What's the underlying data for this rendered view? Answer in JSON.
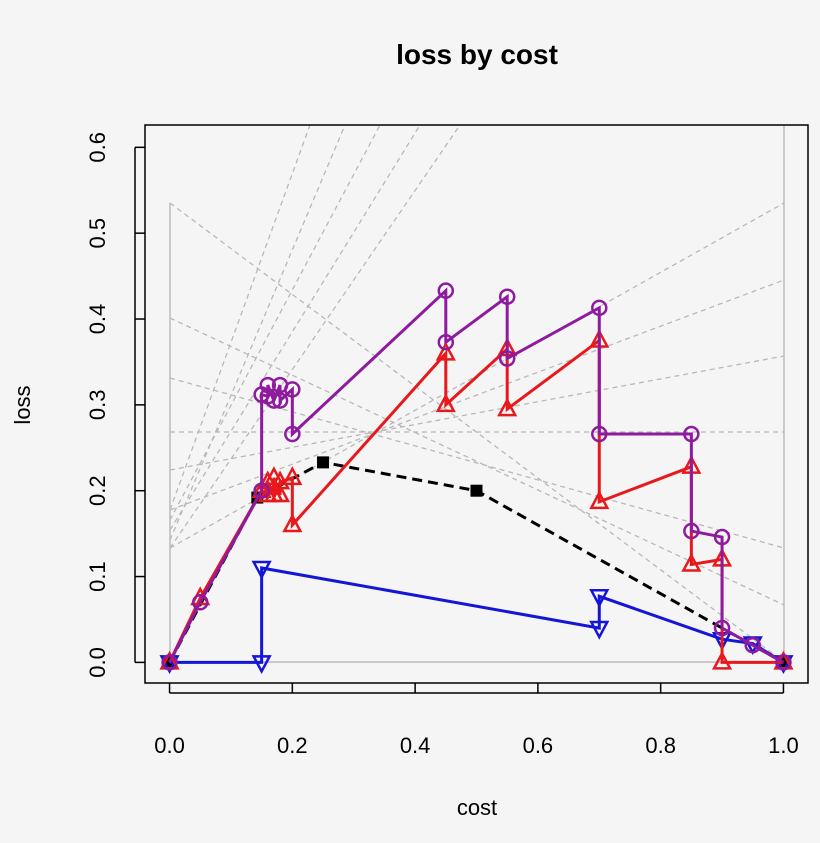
{
  "chart_data": {
    "type": "line",
    "title": "loss by cost",
    "x_label": "cost",
    "y_label": "loss",
    "xlim": [
      -0.04,
      1.04
    ],
    "ylim": [
      -0.024,
      0.626
    ],
    "xticks": [
      {
        "value": 0,
        "label": "0.0"
      },
      {
        "value": 0.2,
        "label": "0.2"
      },
      {
        "value": 0.4,
        "label": "0.4"
      },
      {
        "value": 0.6,
        "label": "0.6"
      },
      {
        "value": 0.8,
        "label": "0.8"
      },
      {
        "value": 1,
        "label": "1.0"
      }
    ],
    "yticks": [
      {
        "value": 0,
        "label": "0.0"
      },
      {
        "value": 0.1,
        "label": "0.1"
      },
      {
        "value": 0.2,
        "label": "0.2"
      },
      {
        "value": 0.3,
        "label": "0.3"
      },
      {
        "value": 0.4,
        "label": "0.4"
      },
      {
        "value": 0.5,
        "label": "0.5"
      },
      {
        "value": 0.6,
        "label": "0.6"
      }
    ],
    "series": [
      {
        "color": "#000000",
        "marker": "square",
        "dashed": true,
        "x": [
          0,
          0.143,
          0.25,
          0.5,
          1
        ],
        "values": [
          0,
          0.192,
          0.233,
          0.2,
          0
        ]
      },
      {
        "color": "#1515d6",
        "marker": "triangle-down",
        "dashed": false,
        "x": [
          0,
          0.15,
          0.15,
          0.7,
          0.7,
          0.9,
          0.95,
          1
        ],
        "values": [
          0,
          0,
          0.11,
          0.04,
          0.077,
          0.027,
          0.022,
          0
        ]
      },
      {
        "color": "#e8191c",
        "marker": "triangle-up",
        "dashed": false,
        "x": [
          0,
          0.05,
          0.15,
          0.16,
          0.16,
          0.17,
          0.17,
          0.18,
          0.18,
          0.2,
          0.2,
          0.45,
          0.45,
          0.55,
          0.55,
          0.7,
          0.7,
          0.85,
          0.85,
          0.9,
          0.9,
          1
        ],
        "values": [
          0,
          0.075,
          0.2,
          0.195,
          0.21,
          0.195,
          0.215,
          0.195,
          0.21,
          0.215,
          0.16,
          0.36,
          0.3,
          0.365,
          0.295,
          0.375,
          0.187,
          0.228,
          0.114,
          0.12,
          0,
          0
        ]
      },
      {
        "color": "#8e1a9e",
        "marker": "circle",
        "dashed": false,
        "x": [
          0,
          0.05,
          0.15,
          0.15,
          0.16,
          0.16,
          0.17,
          0.18,
          0.18,
          0.2,
          0.2,
          0.45,
          0.45,
          0.55,
          0.55,
          0.7,
          0.7,
          0.85,
          0.85,
          0.9,
          0.9,
          0.95,
          1
        ],
        "values": [
          0,
          0.07,
          0.2,
          0.312,
          0.31,
          0.323,
          0.305,
          0.323,
          0.305,
          0.318,
          0.266,
          0.433,
          0.373,
          0.426,
          0.354,
          0.413,
          0.266,
          0.266,
          0.153,
          0.146,
          0.04,
          0.02,
          0
        ]
      }
    ]
  }
}
